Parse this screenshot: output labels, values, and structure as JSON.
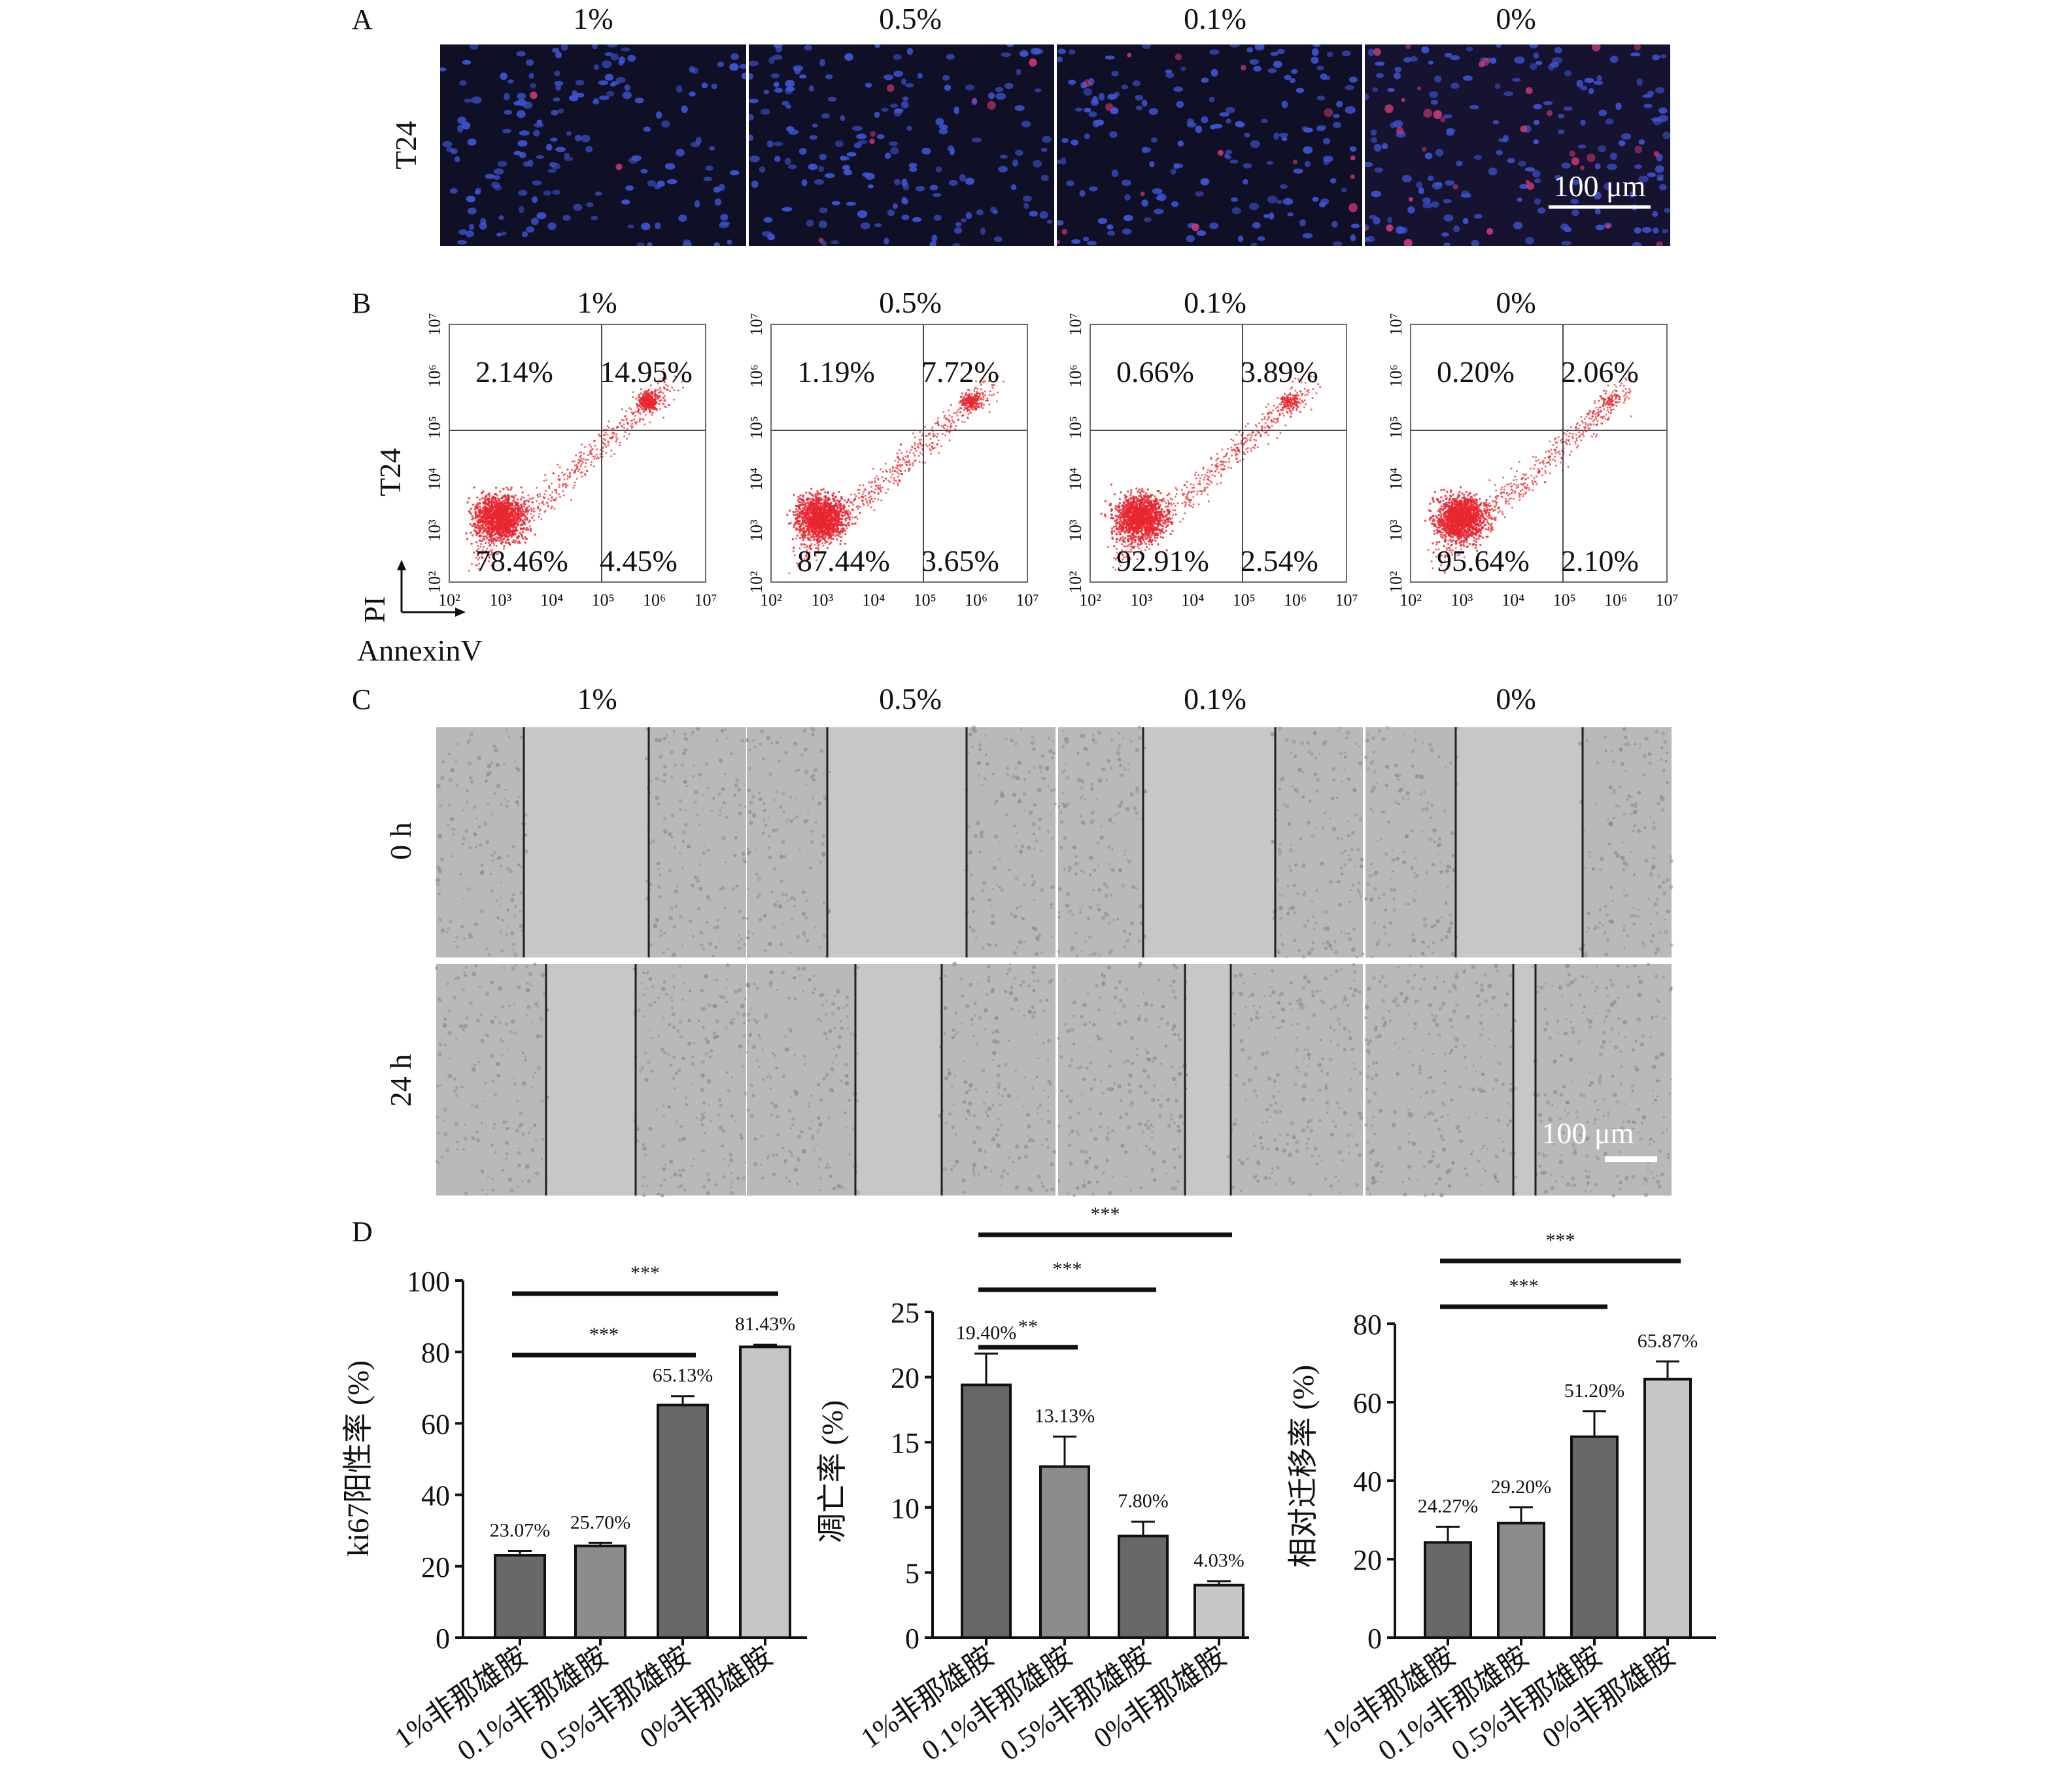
{
  "figure": {
    "panel_letters": [
      "A",
      "B",
      "C",
      "D"
    ],
    "concentrations": [
      "1%",
      "0.5%",
      "0.1%",
      "0%"
    ],
    "panel_a": {
      "row_label": "T24",
      "scale_bar": "100 μm",
      "colors": {
        "background": "#0f1026",
        "nucleus": "#3f55d8",
        "red_signal": "#d63a7a"
      },
      "red_density": [
        0.03,
        0.12,
        0.25,
        0.55
      ]
    },
    "panel_b": {
      "row_label": "T24",
      "y_axis_label": "PI",
      "x_axis_label": "AnnexinV",
      "x_tick_labels": [
        "10²",
        "10³",
        "10⁴",
        "10⁵",
        "10⁶",
        "10⁷"
      ],
      "y_tick_labels": [
        "10²",
        "10³",
        "10⁴",
        "10⁵",
        "10⁶",
        "10⁷"
      ],
      "dot_color": "#e8262f",
      "plots": [
        {
          "upper_left": "2.14%",
          "upper_right": "14.95%",
          "lower_left": "78.46%",
          "lower_right": "4.45%"
        },
        {
          "upper_left": "1.19%",
          "upper_right": "7.72%",
          "lower_left": "87.44%",
          "lower_right": "3.65%"
        },
        {
          "upper_left": "0.66%",
          "upper_right": "3.89%",
          "lower_left": "92.91%",
          "lower_right": "2.54%"
        },
        {
          "upper_left": "0.20%",
          "upper_right": "2.06%",
          "lower_left": "95.64%",
          "lower_right": "2.10%"
        }
      ]
    },
    "panel_c": {
      "row_labels": [
        "0 h",
        "24 h"
      ],
      "scale_bar": "100 μm",
      "colors": {
        "background": "#b9b9b9",
        "gap": "#c7c7c7",
        "cell": "#8a8a8a"
      }
    }
  },
  "chart_data": [
    {
      "type": "bar",
      "ylabel": "ki67阳性率 (%)",
      "categories": [
        "1%非那雄胺",
        "0.1%非那雄胺",
        "0.5%非那雄胺",
        "0%非那雄胺"
      ],
      "values": [
        23.07,
        25.7,
        65.13,
        81.43
      ],
      "value_labels": [
        "23.07%",
        "25.70%",
        "65.13%",
        "81.43%"
      ],
      "errors": [
        1.2,
        0.8,
        2.5,
        0.6
      ],
      "ylim": [
        0,
        100
      ],
      "yticks": [
        0,
        20,
        40,
        60,
        80,
        100
      ],
      "bar_colors": [
        "#686868",
        "#8c8c8c",
        "#686868",
        "#c6c6c6"
      ],
      "significance": [
        {
          "from": 0,
          "to": 2,
          "label": "***"
        },
        {
          "from": 0,
          "to": 3,
          "label": "***"
        }
      ]
    },
    {
      "type": "bar",
      "ylabel": "凋亡率 (%)",
      "categories": [
        "1%非那雄胺",
        "0.1%非那雄胺",
        "0.5%非那雄胺",
        "0%非那雄胺"
      ],
      "values": [
        19.4,
        13.13,
        7.8,
        4.03
      ],
      "value_labels": [
        "19.40%",
        "13.13%",
        "7.80%",
        "4.03%"
      ],
      "errors": [
        2.4,
        2.3,
        1.1,
        0.3
      ],
      "ylim": [
        0,
        25
      ],
      "yticks": [
        0,
        5,
        10,
        15,
        20,
        25
      ],
      "bar_colors": [
        "#686868",
        "#8c8c8c",
        "#686868",
        "#c6c6c6"
      ],
      "significance": [
        {
          "from": 0,
          "to": 1,
          "label": "**"
        },
        {
          "from": 0,
          "to": 2,
          "label": "***"
        },
        {
          "from": 0,
          "to": 3,
          "label": "***"
        }
      ]
    },
    {
      "type": "bar",
      "ylabel": "相对迁移率 (%)",
      "categories": [
        "1%非那雄胺",
        "0.1%非那雄胺",
        "0.5%非那雄胺",
        "0%非那雄胺"
      ],
      "values": [
        24.27,
        29.2,
        51.2,
        65.87
      ],
      "value_labels": [
        "24.27%",
        "29.20%",
        "51.20%",
        "65.87%"
      ],
      "errors": [
        4.0,
        4.0,
        6.5,
        4.5
      ],
      "ylim": [
        0,
        80
      ],
      "yticks": [
        0,
        20,
        40,
        60,
        80
      ],
      "bar_colors": [
        "#686868",
        "#8c8c8c",
        "#686868",
        "#c6c6c6"
      ],
      "significance": [
        {
          "from": 0,
          "to": 2,
          "label": "***"
        },
        {
          "from": 0,
          "to": 3,
          "label": "***"
        }
      ]
    }
  ]
}
